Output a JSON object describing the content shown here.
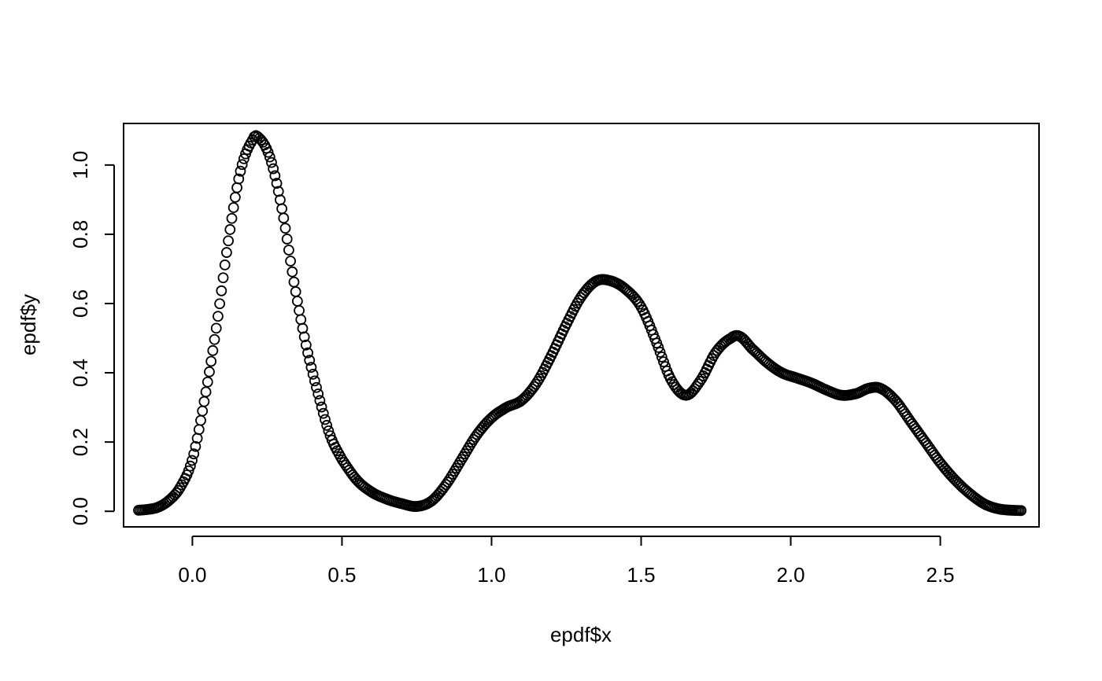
{
  "chart_data": {
    "type": "scatter",
    "title": "",
    "xlabel": "epdf$x",
    "ylabel": "epdf$y",
    "xlim": [
      -0.23,
      2.83
    ],
    "ylim": [
      -0.045,
      1.12
    ],
    "x_ticks": [
      "0.0",
      "0.5",
      "1.0",
      "1.5",
      "2.0",
      "2.5"
    ],
    "y_ticks": [
      "0.0",
      "0.2",
      "0.4",
      "0.6",
      "0.8",
      "1.0"
    ],
    "grid": false,
    "legend": "none",
    "marker": "open-circle",
    "color": "#000000",
    "n_points": 512,
    "x_range": [
      -0.18,
      2.77
    ],
    "density_knots": {
      "x": [
        -0.18,
        -0.12,
        -0.08,
        -0.04,
        0.0,
        0.04,
        0.08,
        0.12,
        0.16,
        0.2,
        0.22,
        0.26,
        0.3,
        0.34,
        0.38,
        0.42,
        0.46,
        0.5,
        0.55,
        0.6,
        0.65,
        0.7,
        0.75,
        0.8,
        0.85,
        0.9,
        0.95,
        1.0,
        1.05,
        1.1,
        1.15,
        1.2,
        1.25,
        1.3,
        1.35,
        1.4,
        1.45,
        1.5,
        1.55,
        1.6,
        1.65,
        1.7,
        1.75,
        1.8,
        1.83,
        1.87,
        1.92,
        1.97,
        2.02,
        2.07,
        2.12,
        2.17,
        2.22,
        2.26,
        2.3,
        2.35,
        2.4,
        2.45,
        2.5,
        2.55,
        2.6,
        2.65,
        2.7,
        2.77
      ],
      "y": [
        0.003,
        0.01,
        0.03,
        0.07,
        0.15,
        0.32,
        0.53,
        0.78,
        0.98,
        1.07,
        1.08,
        1.02,
        0.87,
        0.66,
        0.48,
        0.34,
        0.22,
        0.15,
        0.09,
        0.055,
        0.035,
        0.022,
        0.014,
        0.03,
        0.08,
        0.15,
        0.22,
        0.27,
        0.3,
        0.32,
        0.37,
        0.45,
        0.54,
        0.62,
        0.665,
        0.665,
        0.64,
        0.59,
        0.49,
        0.38,
        0.335,
        0.38,
        0.46,
        0.5,
        0.505,
        0.47,
        0.43,
        0.4,
        0.385,
        0.37,
        0.35,
        0.335,
        0.34,
        0.355,
        0.355,
        0.32,
        0.26,
        0.2,
        0.14,
        0.09,
        0.05,
        0.02,
        0.006,
        0.002
      ]
    }
  }
}
